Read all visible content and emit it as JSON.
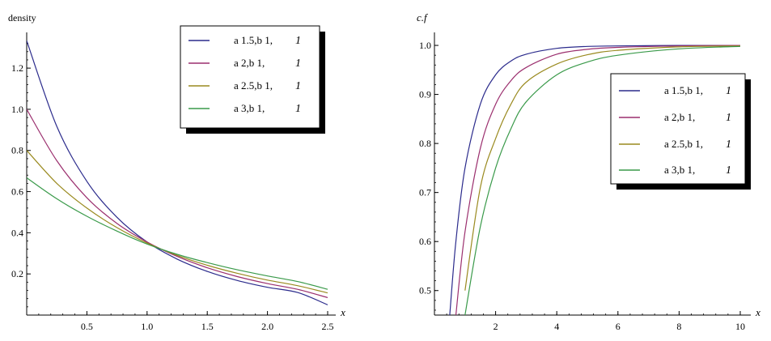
{
  "chart_data": [
    {
      "type": "line",
      "title": "",
      "ylabel": "density",
      "xlabel": "x",
      "xlim": [
        0,
        2.5
      ],
      "ylim": [
        0,
        1.35
      ],
      "xticks": [
        {
          "value": 0.5,
          "label": "0.5"
        },
        {
          "value": 1.0,
          "label": "1.0"
        },
        {
          "value": 1.5,
          "label": "1.5"
        },
        {
          "value": 2.0,
          "label": "2.0"
        },
        {
          "value": 2.5,
          "label": "2.5"
        }
      ],
      "yticks": [
        {
          "value": 0.2,
          "label": "0.2"
        },
        {
          "value": 0.4,
          "label": "0.4"
        },
        {
          "value": 0.6,
          "label": "0.6"
        },
        {
          "value": 0.8,
          "label": "0.8"
        },
        {
          "value": 1.0,
          "label": "1.0"
        },
        {
          "value": 1.2,
          "label": "1.2"
        }
      ],
      "legend_position": "top-right",
      "grid": false,
      "x": [
        0,
        0.25,
        0.5,
        0.75,
        1.0,
        1.25,
        1.5,
        1.75,
        2.0,
        2.25,
        2.5
      ],
      "series": [
        {
          "label_parts": [
            "a 1.5,b 1,",
            "1"
          ],
          "color": "#2b2b8c",
          "values": [
            1.333,
            0.917,
            0.65,
            0.475,
            0.355,
            0.272,
            0.212,
            0.168,
            0.135,
            0.11,
            0.05
          ]
        },
        {
          "label_parts": [
            "a 2,b 1,",
            "1"
          ],
          "color": "#9b2f6e",
          "values": [
            1.0,
            0.75,
            0.57,
            0.445,
            0.355,
            0.285,
            0.23,
            0.187,
            0.153,
            0.125,
            0.085
          ]
        },
        {
          "label_parts": [
            "a 2.5,b 1,",
            "1"
          ],
          "color": "#9a8a1f",
          "values": [
            0.8,
            0.64,
            0.52,
            0.425,
            0.35,
            0.29,
            0.242,
            0.203,
            0.17,
            0.143,
            0.108
          ]
        },
        {
          "label_parts": [
            "a 3,b 1,",
            "1"
          ],
          "color": "#3a9a4a",
          "values": [
            0.667,
            0.565,
            0.48,
            0.408,
            0.345,
            0.295,
            0.255,
            0.22,
            0.19,
            0.163,
            0.125
          ]
        }
      ]
    },
    {
      "type": "line",
      "title": "",
      "ylabel": "c.f",
      "xlabel": "x",
      "xlim": [
        0,
        10
      ],
      "ylim": [
        0.45,
        1.01
      ],
      "xticks": [
        {
          "value": 2,
          "label": "2"
        },
        {
          "value": 4,
          "label": "4"
        },
        {
          "value": 6,
          "label": "6"
        },
        {
          "value": 8,
          "label": "8"
        },
        {
          "value": 10,
          "label": "10"
        }
      ],
      "yticks": [
        {
          "value": 0.5,
          "label": "0.5"
        },
        {
          "value": 0.6,
          "label": "0.6"
        },
        {
          "value": 0.7,
          "label": "0.7"
        },
        {
          "value": 0.8,
          "label": "0.8"
        },
        {
          "value": 0.9,
          "label": "0.9"
        },
        {
          "value": 1.0,
          "label": "1.0"
        }
      ],
      "legend_position": "center-right",
      "grid": false,
      "x": [
        0.5,
        0.7,
        1.0,
        1.5,
        2.0,
        2.5,
        3.0,
        4.0,
        5.0,
        6.0,
        8.0,
        10.0
      ],
      "series": [
        {
          "label_parts": [
            "a 1.5,b 1,",
            "1"
          ],
          "color": "#2b2b8c",
          "values": [
            0.45,
            0.6,
            0.75,
            0.88,
            0.94,
            0.968,
            0.982,
            0.994,
            0.998,
            0.999,
            1.0,
            1.0
          ]
        },
        {
          "label_parts": [
            "a 2,b 1,",
            "1"
          ],
          "color": "#9b2f6e",
          "values": [
            null,
            0.45,
            0.62,
            0.79,
            0.88,
            0.928,
            0.955,
            0.982,
            0.992,
            0.996,
            0.999,
            1.0
          ]
        },
        {
          "label_parts": [
            "a 2.5,b 1,",
            "1"
          ],
          "color": "#9a8a1f",
          "values": [
            null,
            null,
            0.5,
            0.71,
            0.81,
            0.88,
            0.925,
            0.962,
            0.981,
            0.99,
            0.997,
            0.999
          ]
        },
        {
          "label_parts": [
            "a 3,b 1,",
            "1"
          ],
          "color": "#3a9a4a",
          "values": [
            null,
            null,
            0.45,
            0.63,
            0.75,
            0.83,
            0.885,
            0.94,
            0.966,
            0.98,
            0.993,
            0.998
          ]
        }
      ]
    }
  ]
}
